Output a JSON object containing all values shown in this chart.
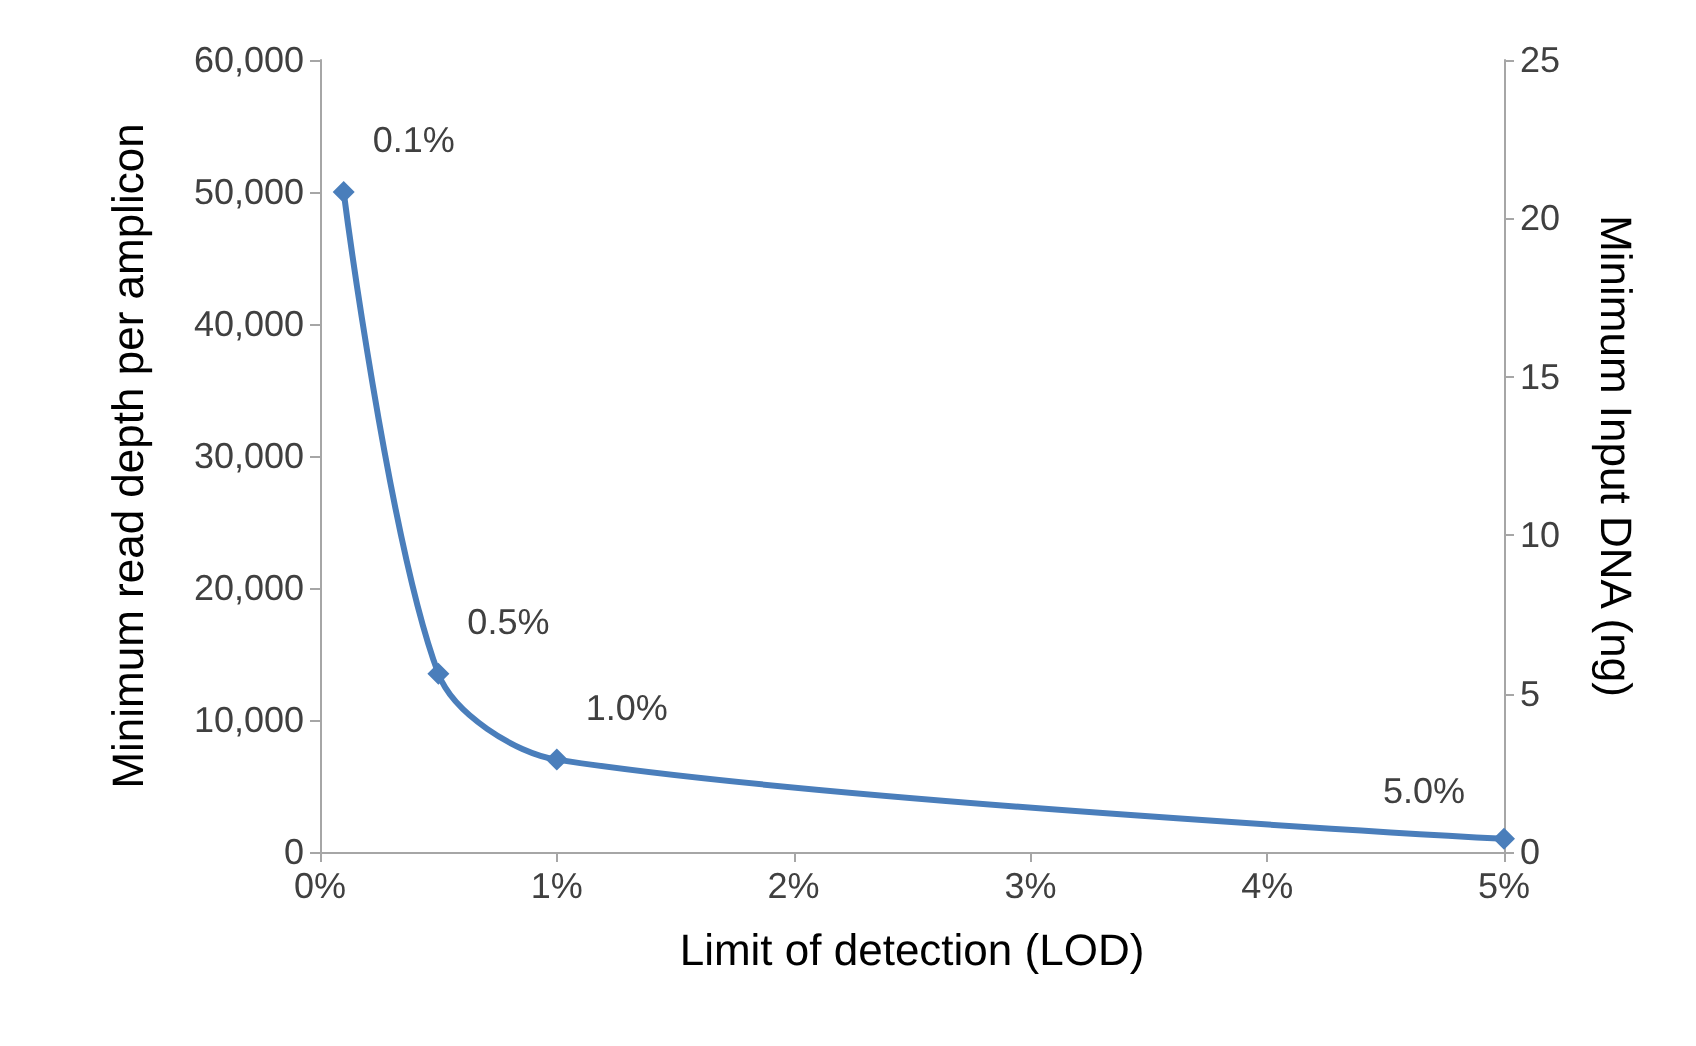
{
  "chart_data": {
    "type": "line",
    "xlabel": "Limit of detection (LOD)",
    "ylabel": "Minimum read depth per amplicon",
    "y2label": "Minimum Input DNA (ng)",
    "x": [
      0.1,
      0.5,
      1,
      5
    ],
    "series": [
      {
        "color": "#4a7ebb",
        "values": [
          50000,
          13500,
          7000,
          1000
        ]
      }
    ],
    "xlim": [
      0,
      5
    ],
    "xticks": [
      {
        "value": 0,
        "label": "0%"
      },
      {
        "value": 1,
        "label": "1%"
      },
      {
        "value": 2,
        "label": "2%"
      },
      {
        "value": 3,
        "label": "3%"
      },
      {
        "value": 4,
        "label": "4%"
      },
      {
        "value": 5,
        "label": "5%"
      }
    ],
    "ylim": [
      0,
      60000
    ],
    "yticks": [
      0,
      {
        "value": 10000,
        "label": "10,000"
      },
      {
        "value": 20000,
        "label": "20,000"
      },
      {
        "value": 30000,
        "label": "30,000"
      },
      {
        "value": 40000,
        "label": "40,000"
      },
      {
        "value": 50000,
        "label": "50,000"
      },
      {
        "value": 60000,
        "label": "60,000"
      }
    ],
    "y2lim": [
      0,
      25
    ],
    "y2ticks": [
      0,
      5,
      10,
      15,
      20,
      25
    ],
    "annotations": [
      {
        "text": "0.1%",
        "x": 0.1,
        "y": 50000
      },
      {
        "text": "0.5%",
        "x": 0.5,
        "y": 13500
      },
      {
        "text": "1.0%",
        "x": 1,
        "y": 7000
      },
      {
        "text": "5.0%",
        "x": 5,
        "y": 1000
      }
    ],
    "grid": false,
    "marker": "diamond",
    "line_style": "solid"
  }
}
